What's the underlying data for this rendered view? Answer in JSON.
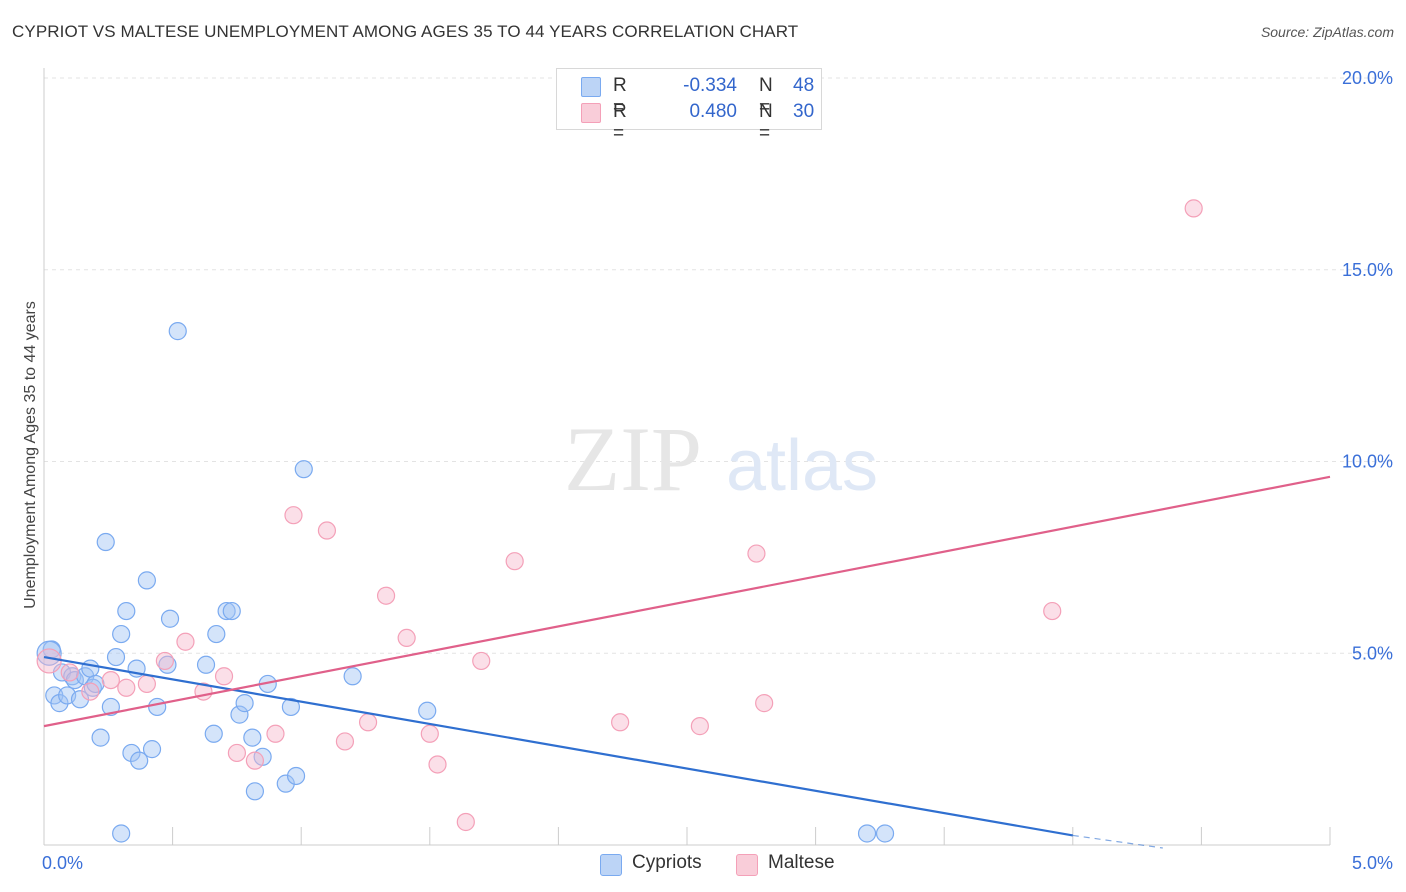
{
  "title": "CYPRIOT VS MALTESE UNEMPLOYMENT AMONG AGES 35 TO 44 YEARS CORRELATION CHART",
  "source": "Source: ZipAtlas.com",
  "watermark": {
    "zip": "ZIP",
    "atlas": "atlas"
  },
  "legend": {
    "cypriots": {
      "r_label": "R =",
      "r_value": "-0.334",
      "n_label": "N =",
      "n_value": "48",
      "color": "#7aaaf0"
    },
    "maltese": {
      "r_label": "R =",
      "r_value": "0.480",
      "n_label": "N =",
      "n_value": "30",
      "color": "#f4a0b8"
    }
  },
  "bottom_legend": {
    "cypriots": "Cypriots",
    "maltese": "Maltese"
  },
  "chart_data": {
    "type": "scatter",
    "title": "CYPRIOT VS MALTESE UNEMPLOYMENT AMONG AGES 35 TO 44 YEARS CORRELATION CHART",
    "xlabel": "",
    "ylabel": "Unemployment Among Ages 35 to 44 years",
    "xlim": [
      0,
      5
    ],
    "ylim": [
      0,
      20
    ],
    "x_tick_labels": [
      {
        "value": 0,
        "label": "0.0%"
      },
      {
        "value": 5,
        "label": "5.0%"
      }
    ],
    "y_tick_labels": [
      {
        "value": 5,
        "label": "5.0%"
      },
      {
        "value": 10,
        "label": "10.0%"
      },
      {
        "value": 15,
        "label": "15.0%"
      },
      {
        "value": 20,
        "label": "20.0%"
      }
    ],
    "grid": true,
    "series": [
      {
        "name": "Cypriots",
        "color": "#7aaaf0",
        "line_color": "#2f6fd0",
        "trend": {
          "x": [
            0,
            4.0
          ],
          "y": [
            4.9,
            0.25
          ],
          "dashed_extension_to": [
            4.35,
            -0.1
          ]
        },
        "points": [
          {
            "x": 0.03,
            "y": 5.1
          },
          {
            "x": 0.04,
            "y": 3.9
          },
          {
            "x": 0.06,
            "y": 3.7
          },
          {
            "x": 0.07,
            "y": 4.5
          },
          {
            "x": 0.09,
            "y": 3.9
          },
          {
            "x": 0.11,
            "y": 4.4
          },
          {
            "x": 0.12,
            "y": 4.3
          },
          {
            "x": 0.14,
            "y": 3.8
          },
          {
            "x": 0.16,
            "y": 4.4
          },
          {
            "x": 0.18,
            "y": 4.6
          },
          {
            "x": 0.19,
            "y": 4.1
          },
          {
            "x": 0.2,
            "y": 4.2
          },
          {
            "x": 0.22,
            "y": 2.8
          },
          {
            "x": 0.24,
            "y": 7.9
          },
          {
            "x": 0.26,
            "y": 3.6
          },
          {
            "x": 0.28,
            "y": 4.9
          },
          {
            "x": 0.3,
            "y": 0.3
          },
          {
            "x": 0.3,
            "y": 5.5
          },
          {
            "x": 0.32,
            "y": 6.1
          },
          {
            "x": 0.34,
            "y": 2.4
          },
          {
            "x": 0.36,
            "y": 4.6
          },
          {
            "x": 0.37,
            "y": 2.2
          },
          {
            "x": 0.4,
            "y": 6.9
          },
          {
            "x": 0.42,
            "y": 2.5
          },
          {
            "x": 0.44,
            "y": 3.6
          },
          {
            "x": 0.48,
            "y": 4.7
          },
          {
            "x": 0.49,
            "y": 5.9
          },
          {
            "x": 0.52,
            "y": 13.4
          },
          {
            "x": 0.63,
            "y": 4.7
          },
          {
            "x": 0.66,
            "y": 2.9
          },
          {
            "x": 0.67,
            "y": 5.5
          },
          {
            "x": 0.71,
            "y": 6.1
          },
          {
            "x": 0.73,
            "y": 6.1
          },
          {
            "x": 0.76,
            "y": 3.4
          },
          {
            "x": 0.78,
            "y": 3.7
          },
          {
            "x": 0.81,
            "y": 2.8
          },
          {
            "x": 0.82,
            "y": 1.4
          },
          {
            "x": 0.85,
            "y": 2.3
          },
          {
            "x": 0.87,
            "y": 4.2
          },
          {
            "x": 0.94,
            "y": 1.6
          },
          {
            "x": 0.96,
            "y": 3.6
          },
          {
            "x": 0.98,
            "y": 1.8
          },
          {
            "x": 1.01,
            "y": 9.8
          },
          {
            "x": 1.2,
            "y": 4.4
          },
          {
            "x": 1.49,
            "y": 3.5
          },
          {
            "x": 3.2,
            "y": 0.3
          },
          {
            "x": 3.27,
            "y": 0.3
          },
          {
            "x": 0.02,
            "y": 5.0
          }
        ]
      },
      {
        "name": "Maltese",
        "color": "#f4a0b8",
        "line_color": "#e0608a",
        "trend": {
          "x": [
            0,
            5.0
          ],
          "y": [
            3.1,
            9.6
          ]
        },
        "points": [
          {
            "x": 0.02,
            "y": 4.8
          },
          {
            "x": 0.1,
            "y": 4.5
          },
          {
            "x": 0.18,
            "y": 4.0
          },
          {
            "x": 0.26,
            "y": 4.3
          },
          {
            "x": 0.32,
            "y": 4.1
          },
          {
            "x": 0.4,
            "y": 4.2
          },
          {
            "x": 0.47,
            "y": 4.8
          },
          {
            "x": 0.55,
            "y": 5.3
          },
          {
            "x": 0.62,
            "y": 4.0
          },
          {
            "x": 0.7,
            "y": 4.4
          },
          {
            "x": 0.75,
            "y": 2.4
          },
          {
            "x": 0.82,
            "y": 2.2
          },
          {
            "x": 0.9,
            "y": 2.9
          },
          {
            "x": 0.97,
            "y": 8.6
          },
          {
            "x": 1.1,
            "y": 8.2
          },
          {
            "x": 1.17,
            "y": 2.7
          },
          {
            "x": 1.26,
            "y": 3.2
          },
          {
            "x": 1.33,
            "y": 6.5
          },
          {
            "x": 1.41,
            "y": 5.4
          },
          {
            "x": 1.5,
            "y": 2.9
          },
          {
            "x": 1.53,
            "y": 2.1
          },
          {
            "x": 1.64,
            "y": 0.6
          },
          {
            "x": 1.7,
            "y": 4.8
          },
          {
            "x": 1.83,
            "y": 7.4
          },
          {
            "x": 2.24,
            "y": 3.2
          },
          {
            "x": 2.55,
            "y": 3.1
          },
          {
            "x": 2.77,
            "y": 7.6
          },
          {
            "x": 2.8,
            "y": 3.7
          },
          {
            "x": 3.92,
            "y": 6.1
          },
          {
            "x": 4.47,
            "y": 16.6
          }
        ]
      }
    ]
  }
}
